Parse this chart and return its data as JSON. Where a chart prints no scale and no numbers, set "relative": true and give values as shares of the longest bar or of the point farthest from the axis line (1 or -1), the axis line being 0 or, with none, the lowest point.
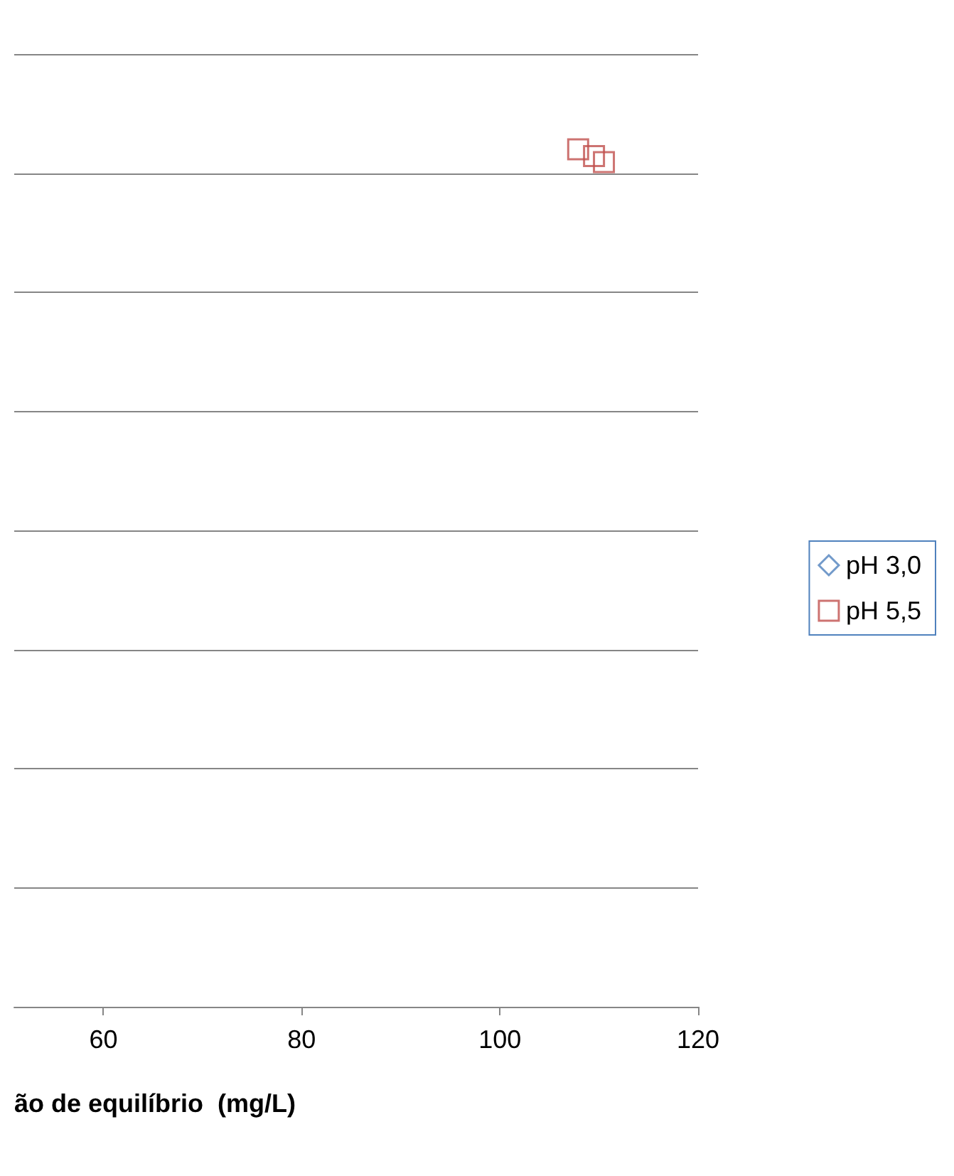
{
  "chart_data": {
    "type": "scatter",
    "xlabel": "ão de equilíbrio  (mg/L)",
    "xlim": [
      51,
      120
    ],
    "xticks": [
      60,
      80,
      100,
      120
    ],
    "relative": true,
    "grid": "y",
    "legend": "right",
    "series": [
      {
        "name": "pH 3,0",
        "color": "#4f81bd",
        "marker": "diamond"
      },
      {
        "name": "pH 5,5",
        "color": "#c0504d",
        "marker": "square",
        "x": [
          107.9,
          109.5,
          110.5
        ],
        "values": [
          1,
          0.992,
          0.985
        ]
      }
    ]
  }
}
